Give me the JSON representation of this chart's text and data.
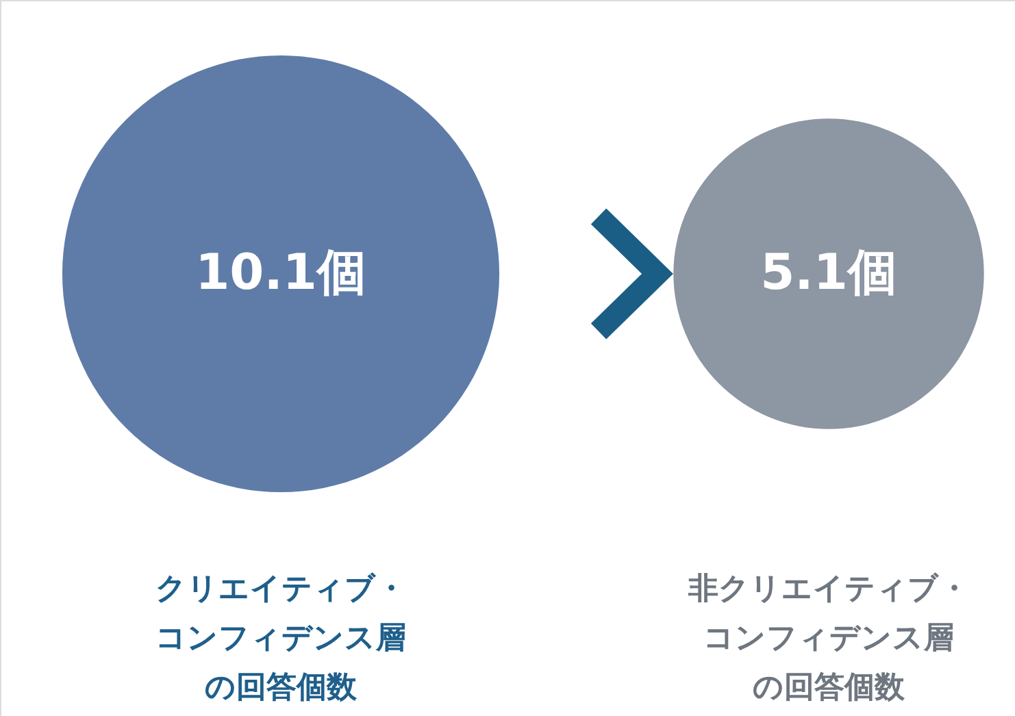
{
  "chart_data": {
    "type": "other",
    "categories": [
      "クリエイティブ・コンフィデンス層の回答個数",
      "非クリエイティブ・コンフィデンス層の回答個数"
    ],
    "values": [
      10.1,
      5.1
    ],
    "value_labels": [
      "10.1個",
      "5.1個"
    ],
    "colors": [
      "#5f7ca8",
      "#8d96a3"
    ]
  }
}
